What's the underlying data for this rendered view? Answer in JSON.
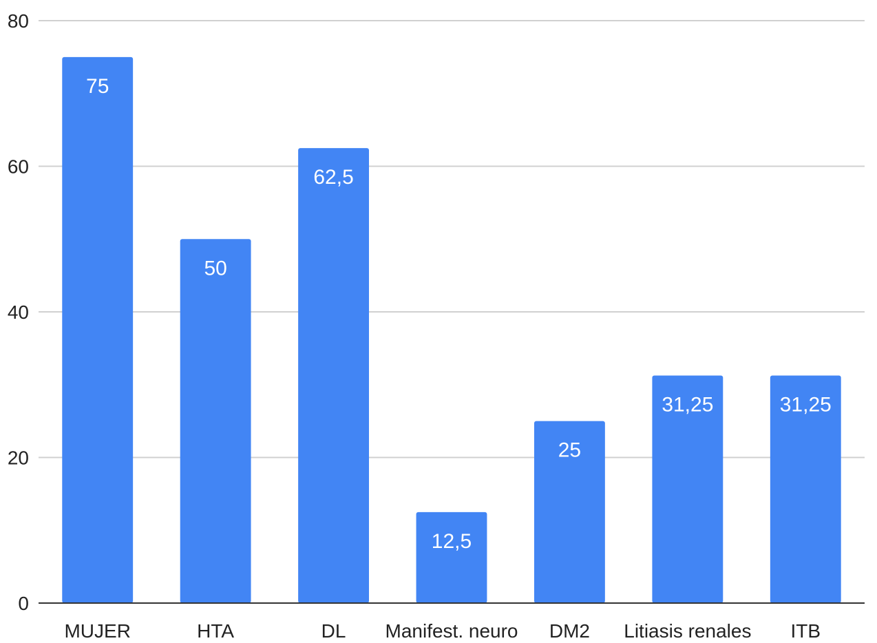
{
  "chart_data": {
    "type": "bar",
    "title": "",
    "xlabel": "",
    "ylabel": "",
    "categories": [
      "MUJER",
      "HTA",
      "DL",
      "Manifest. neuro",
      "DM2",
      "Litiasis renales",
      "ITB"
    ],
    "values": [
      75,
      50,
      62.5,
      12.5,
      25,
      31.25,
      31.25
    ],
    "data_labels": [
      "75",
      "50",
      "62,5",
      "12,5",
      "25",
      "31,25",
      "31,25"
    ],
    "ylim": [
      0,
      80
    ],
    "yticks": [
      0,
      20,
      40,
      60,
      80
    ],
    "grid": true,
    "legend": "none",
    "bar_color": "#4285f4"
  }
}
